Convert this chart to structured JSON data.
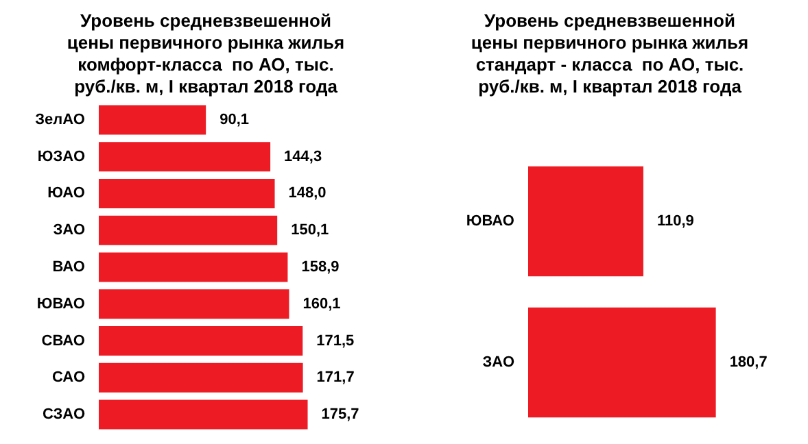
{
  "chart_data": [
    {
      "type": "bar",
      "orientation": "horizontal",
      "title": "Уровень средневзвешенной\nцены первичного рынка жилья\nкомфорт-класса  по АО, тыс.\nруб./кв. м, I квартал 2018 года",
      "categories": [
        "ЗелАО",
        "ЮЗАО",
        "ЮАО",
        "ЗАО",
        "ВАО",
        "ЮВАО",
        "СВАО",
        "САО",
        "СЗАО"
      ],
      "values": [
        90.1,
        144.3,
        148.0,
        150.1,
        158.9,
        160.1,
        171.5,
        171.7,
        175.7
      ],
      "value_labels": [
        "90,1",
        "144,3",
        "148,0",
        "150,1",
        "158,9",
        "160,1",
        "171,5",
        "171,7",
        "175,7"
      ],
      "color": "#ed1c24"
    },
    {
      "type": "bar",
      "orientation": "horizontal",
      "title": "Уровень средневзвешенной\nцены первичного рынка жилья\nстандарт - класса  по АО, тыс.\nруб./кв. м, I квартал 2018 года",
      "categories": [
        "ЮВАО",
        "ЗАО"
      ],
      "values": [
        110.9,
        180.7
      ],
      "value_labels": [
        "110,9",
        "180,7"
      ],
      "color": "#ed1c24"
    }
  ]
}
